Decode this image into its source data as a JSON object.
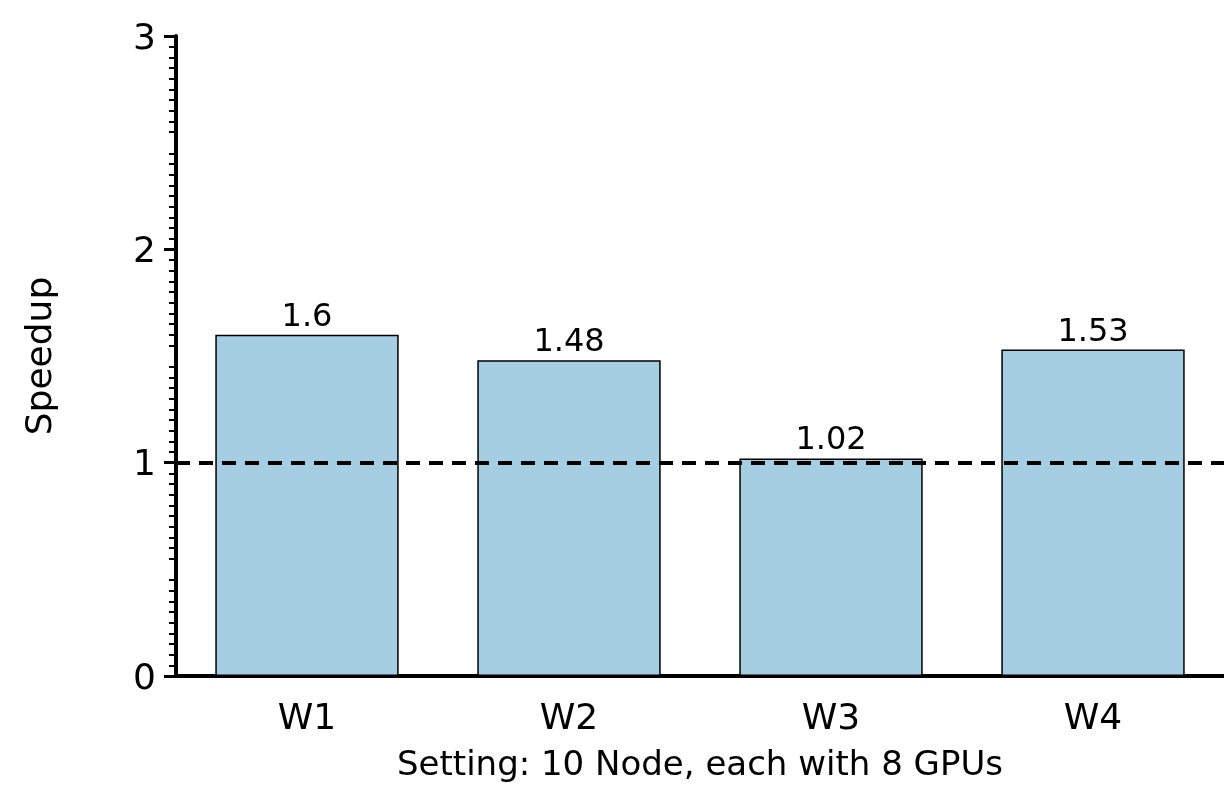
{
  "chart_data": {
    "type": "bar",
    "xlabel": "Setting: 10 Node, each with 8 GPUs",
    "ylabel": "Speedup",
    "categories": [
      "W1",
      "W2",
      "W3",
      "W4"
    ],
    "values": [
      1.6,
      1.48,
      1.02,
      1.53
    ],
    "color": "#a6cee3",
    "data_labels": true,
    "ylim": [
      0,
      3
    ],
    "yticks": [
      0,
      1,
      2,
      3
    ],
    "grid": false,
    "ref_lines": [
      {
        "axis": "y",
        "value": 1,
        "color": "#000000",
        "line_style": "dashed"
      }
    ]
  }
}
